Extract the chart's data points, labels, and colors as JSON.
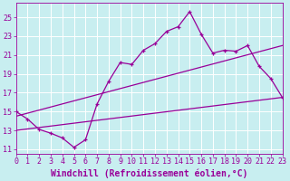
{
  "xlabel": "Windchill (Refroidissement éolien,°C)",
  "background_color": "#c8eef0",
  "line_color": "#990099",
  "grid_color": "#b0dde0",
  "x_ticks": [
    0,
    1,
    2,
    3,
    4,
    5,
    6,
    7,
    8,
    9,
    10,
    11,
    12,
    13,
    14,
    15,
    16,
    17,
    18,
    19,
    20,
    21,
    22,
    23
  ],
  "y_ticks": [
    11,
    13,
    15,
    17,
    19,
    21,
    23,
    25
  ],
  "xlim": [
    0,
    23
  ],
  "ylim": [
    10.5,
    26.5
  ],
  "curve1_x": [
    0,
    1,
    2,
    3,
    4,
    5,
    6,
    7,
    8,
    9,
    10,
    11,
    12,
    13,
    14,
    15,
    16,
    17,
    18,
    19,
    20,
    21,
    22,
    23
  ],
  "curve1_y": [
    15.0,
    14.2,
    13.1,
    12.7,
    12.2,
    11.2,
    12.0,
    15.8,
    18.2,
    20.2,
    20.0,
    21.5,
    22.2,
    23.5,
    24.0,
    25.6,
    23.2,
    21.2,
    21.5,
    21.4,
    22.0,
    19.8,
    18.5,
    16.5
  ],
  "trend1_x": [
    0,
    23
  ],
  "trend1_y": [
    14.5,
    22.0
  ],
  "trend2_x": [
    0,
    23
  ],
  "trend2_y": [
    13.0,
    16.5
  ],
  "tick_fontsize": 6,
  "xlabel_fontsize": 7
}
